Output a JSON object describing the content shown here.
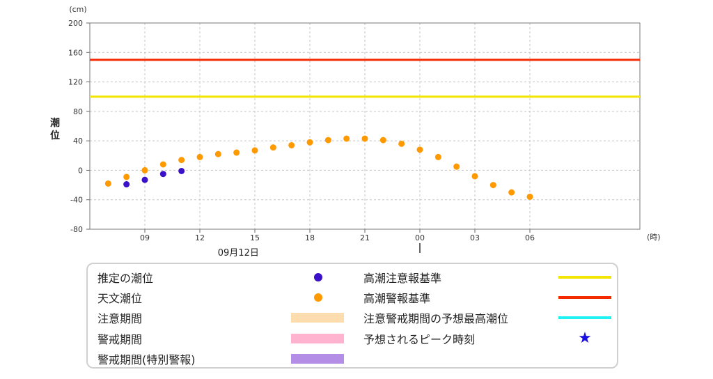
{
  "chart_data": {
    "type": "scatter",
    "ylabel": "潮位",
    "y_unit": "(cm)",
    "x_unit": "(時)",
    "ylim": [
      -80,
      200
    ],
    "y_ticks": [
      -80,
      -40,
      0,
      40,
      80,
      120,
      160,
      200
    ],
    "x_hours": [
      6,
      36
    ],
    "x_tick_hours": [
      9,
      12,
      15,
      18,
      21,
      24,
      27,
      30
    ],
    "x_tick_labels": [
      "09",
      "12",
      "15",
      "18",
      "21",
      "00",
      "03",
      "06"
    ],
    "date_label": "09月12日",
    "grid": true,
    "thresholds": [
      {
        "name": "高潮注意報基準",
        "value": 100,
        "color": "#f2e600"
      },
      {
        "name": "高潮警報基準",
        "value": 150,
        "color": "#f52a00"
      }
    ],
    "series": [
      {
        "name": "推定の潮位",
        "color": "#3a10c8",
        "x": [
          "08",
          "09",
          "10",
          "11"
        ],
        "values": [
          -19,
          -13,
          -5,
          -1
        ]
      },
      {
        "name": "天文潮位",
        "color": "#ff9900",
        "x": [
          "07",
          "08",
          "09",
          "10",
          "11",
          "12",
          "13",
          "14",
          "15",
          "16",
          "17",
          "18",
          "19",
          "20",
          "21",
          "22",
          "23",
          "00",
          "01",
          "02",
          "03",
          "04",
          "05",
          "06"
        ],
        "values": [
          -18,
          -9,
          0,
          8,
          14,
          18,
          22,
          24,
          27,
          31,
          34,
          38,
          41,
          43,
          43,
          41,
          36,
          28,
          18,
          5,
          -8,
          -20,
          -30,
          -36
        ]
      }
    ]
  },
  "legend": {
    "estimated": "推定の潮位",
    "astronomical": "天文潮位",
    "caution_period": "注意期間",
    "warning_period": "警戒期間",
    "special_warning_period": "警戒期間(特別警報)",
    "caution_standard": "高潮注意報基準",
    "warning_standard": "高潮警報基準",
    "max_tide": "注意警戒期間の予想最高潮位",
    "peak_time": "予想されるピーク時刻",
    "colors": {
      "estimated": "#3a10c8",
      "astronomical": "#ff9900",
      "caution_period": "#fddcb0",
      "warning_period": "#ffb3cf",
      "special_warning_period": "#b38de6",
      "caution_standard": "#f2e600",
      "warning_standard": "#f52a00",
      "max_tide": "#1ef2f2",
      "peak_star": "#1a10e0"
    },
    "peak_icon": "star-icon"
  }
}
